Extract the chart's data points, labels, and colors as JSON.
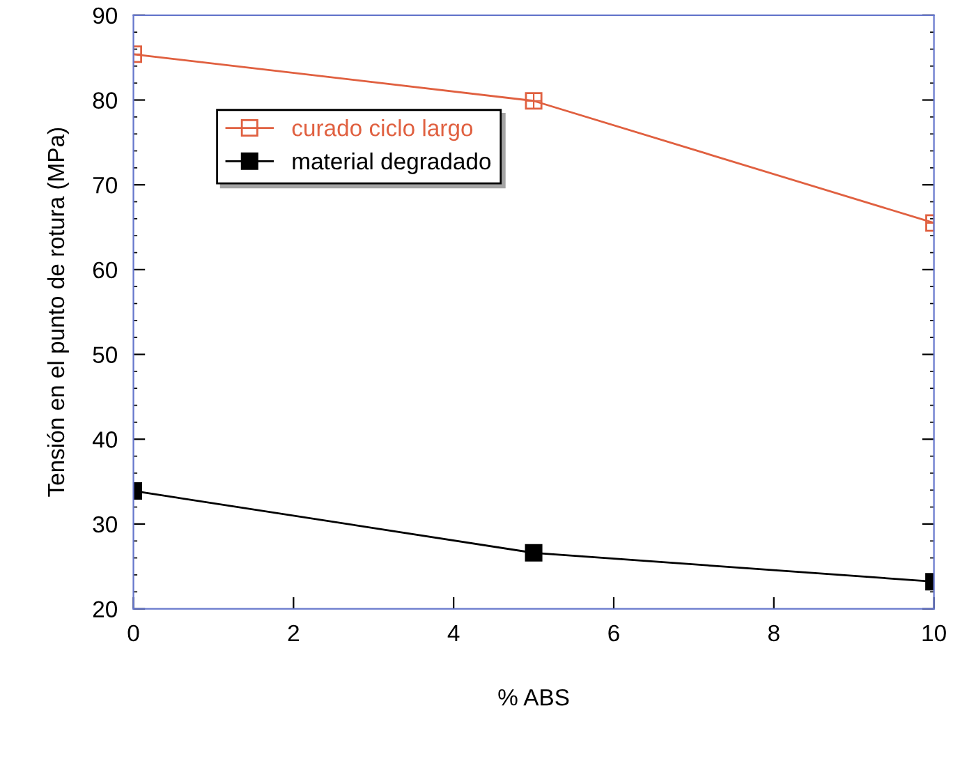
{
  "chart_data": {
    "type": "line",
    "xlabel": "% ABS",
    "ylabel": "Tensión en el punto de rotura (MPa)",
    "x": [
      0,
      5,
      10
    ],
    "series": [
      {
        "name": "curado ciclo largo",
        "color": "#e06040",
        "values": [
          85.4,
          79.9,
          65.5
        ],
        "marker": "square"
      },
      {
        "name": "material degradado",
        "color": "#000000",
        "values": [
          33.9,
          26.6,
          23.2
        ],
        "marker": "square"
      }
    ],
    "xlim": [
      0,
      10
    ],
    "xticks": [
      0,
      2,
      4,
      6,
      8,
      10
    ],
    "ylim": [
      20,
      90
    ],
    "yticks": [
      20,
      30,
      40,
      50,
      60,
      70,
      80,
      90
    ],
    "grid": false,
    "legend": "top left",
    "line_style": "solid"
  }
}
